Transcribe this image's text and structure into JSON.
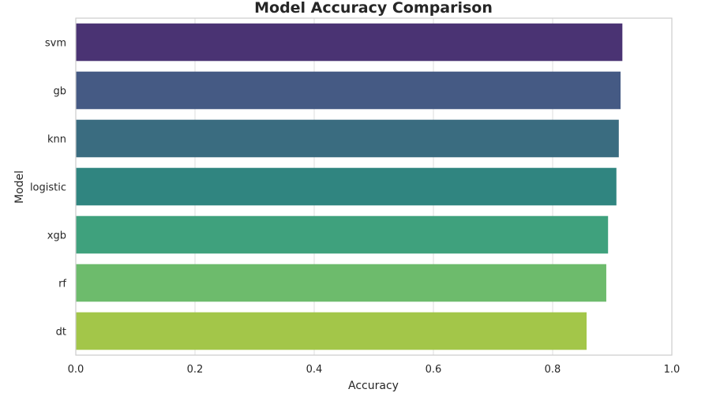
{
  "chart_data": {
    "type": "bar",
    "orientation": "horizontal",
    "title": "Model Accuracy Comparison",
    "xlabel": "Accuracy",
    "ylabel": "Model",
    "categories": [
      "svm",
      "gb",
      "knn",
      "logistic",
      "xgb",
      "rf",
      "dt"
    ],
    "values": [
      0.917,
      0.914,
      0.911,
      0.907,
      0.893,
      0.89,
      0.857
    ],
    "colors": [
      "#482475",
      "#414487",
      "#355f8d",
      "#2a788e",
      "#21918c",
      "#22a884",
      "#44bf70",
      "#7ad151",
      "#bddf26"
    ],
    "bar_colors": [
      "#4a3373",
      "#455a84",
      "#3a6c80",
      "#308580",
      "#3fa17d",
      "#6dbb6c",
      "#a3c649"
    ],
    "xlim": [
      0.0,
      1.0
    ],
    "xticks": [
      "0.0",
      "0.2",
      "0.4",
      "0.6",
      "0.8",
      "1.0"
    ],
    "grid": true,
    "legend": "none"
  }
}
